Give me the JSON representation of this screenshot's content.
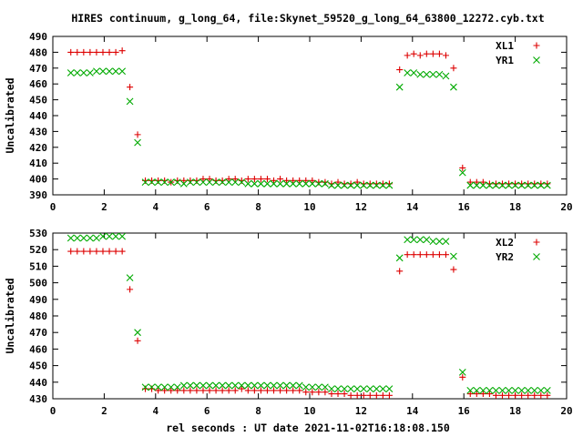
{
  "title": "HIRES continuum, g_long_64, file:Skynet_59520_g_long_64_63800_12272.cyb.txt",
  "xlabel": "rel seconds : UT date 2021-11-02T16:18:08.150",
  "chart_data": [
    {
      "type": "scatter",
      "ylabel": "Uncalibrated",
      "xlim": [
        0,
        20
      ],
      "ylim": [
        390,
        490
      ],
      "xticks": [
        0,
        2,
        4,
        6,
        8,
        10,
        12,
        14,
        16,
        18,
        20
      ],
      "yticks": [
        390,
        400,
        410,
        420,
        430,
        440,
        450,
        460,
        470,
        480,
        490
      ],
      "legend_position": "top-right",
      "series": [
        {
          "name": "XL1",
          "color": "#dd0000",
          "marker": "plus",
          "x": [
            0.7,
            0.95,
            1.2,
            1.45,
            1.7,
            1.95,
            2.2,
            2.45,
            2.7,
            3.0,
            3.3,
            3.6,
            3.85,
            4.1,
            4.35,
            4.6,
            4.85,
            5.1,
            5.35,
            5.6,
            5.85,
            6.1,
            6.35,
            6.6,
            6.85,
            7.1,
            7.35,
            7.6,
            7.85,
            8.1,
            8.35,
            8.6,
            8.85,
            9.1,
            9.35,
            9.6,
            9.85,
            10.1,
            10.35,
            10.6,
            10.85,
            11.1,
            11.35,
            11.6,
            11.85,
            12.1,
            12.35,
            12.6,
            12.85,
            13.1,
            13.5,
            13.8,
            14.05,
            14.3,
            14.55,
            14.8,
            15.05,
            15.3,
            15.6,
            15.95,
            16.25,
            16.5,
            16.75,
            17.0,
            17.25,
            17.5,
            17.75,
            18.0,
            18.25,
            18.5,
            18.75,
            19.0,
            19.25
          ],
          "y": [
            480,
            480,
            480,
            480,
            480,
            480,
            480,
            480,
            481,
            458,
            428,
            399,
            399,
            399,
            399,
            398,
            399,
            399,
            399,
            399,
            400,
            400,
            399,
            399,
            400,
            400,
            399,
            400,
            400,
            400,
            400,
            399,
            400,
            399,
            399,
            399,
            399,
            399,
            398,
            398,
            397,
            398,
            397,
            397,
            398,
            397,
            397,
            397,
            397,
            397,
            469,
            478,
            479,
            478,
            479,
            479,
            479,
            478,
            470,
            407,
            398,
            398,
            398,
            397,
            397,
            397,
            397,
            397,
            397,
            397,
            397,
            397,
            397
          ]
        },
        {
          "name": "YR1",
          "color": "#00aa00",
          "marker": "x",
          "x": [
            0.7,
            0.95,
            1.2,
            1.45,
            1.7,
            1.95,
            2.2,
            2.45,
            2.7,
            3.0,
            3.3,
            3.6,
            3.85,
            4.1,
            4.35,
            4.6,
            4.85,
            5.1,
            5.35,
            5.6,
            5.85,
            6.1,
            6.35,
            6.6,
            6.85,
            7.1,
            7.35,
            7.6,
            7.85,
            8.1,
            8.35,
            8.6,
            8.85,
            9.1,
            9.35,
            9.6,
            9.85,
            10.1,
            10.35,
            10.6,
            10.85,
            11.1,
            11.35,
            11.6,
            11.85,
            12.1,
            12.35,
            12.6,
            12.85,
            13.1,
            13.5,
            13.8,
            14.05,
            14.3,
            14.55,
            14.8,
            15.05,
            15.3,
            15.6,
            15.95,
            16.25,
            16.5,
            16.75,
            17.0,
            17.25,
            17.5,
            17.75,
            18.0,
            18.25,
            18.5,
            18.75,
            19.0,
            19.25
          ],
          "y": [
            467,
            467,
            467,
            467,
            468,
            468,
            468,
            468,
            468,
            449,
            423,
            398,
            398,
            398,
            398,
            398,
            398,
            397,
            398,
            398,
            398,
            398,
            398,
            398,
            398,
            398,
            398,
            397,
            397,
            397,
            397,
            397,
            397,
            397,
            397,
            397,
            397,
            397,
            397,
            397,
            396,
            396,
            396,
            396,
            396,
            396,
            396,
            396,
            396,
            396,
            458,
            467,
            467,
            466,
            466,
            466,
            466,
            465,
            458,
            404,
            396,
            396,
            396,
            396,
            396,
            396,
            396,
            396,
            396,
            396,
            396,
            396,
            396
          ]
        }
      ]
    },
    {
      "type": "scatter",
      "ylabel": "Uncalibrated",
      "xlim": [
        0,
        20
      ],
      "ylim": [
        430,
        530
      ],
      "xticks": [
        0,
        2,
        4,
        6,
        8,
        10,
        12,
        14,
        16,
        18,
        20
      ],
      "yticks": [
        430,
        440,
        450,
        460,
        470,
        480,
        490,
        500,
        510,
        520,
        530
      ],
      "legend_position": "top-right",
      "series": [
        {
          "name": "XL2",
          "color": "#dd0000",
          "marker": "plus",
          "x": [
            0.7,
            0.95,
            1.2,
            1.45,
            1.7,
            1.95,
            2.2,
            2.45,
            2.7,
            3.0,
            3.3,
            3.6,
            3.85,
            4.1,
            4.35,
            4.6,
            4.85,
            5.1,
            5.35,
            5.6,
            5.85,
            6.1,
            6.35,
            6.6,
            6.85,
            7.1,
            7.35,
            7.6,
            7.85,
            8.1,
            8.35,
            8.6,
            8.85,
            9.1,
            9.35,
            9.6,
            9.85,
            10.1,
            10.35,
            10.6,
            10.85,
            11.1,
            11.35,
            11.6,
            11.85,
            12.1,
            12.35,
            12.6,
            12.85,
            13.1,
            13.5,
            13.8,
            14.05,
            14.3,
            14.55,
            14.8,
            15.05,
            15.3,
            15.6,
            15.95,
            16.25,
            16.5,
            16.75,
            17.0,
            17.25,
            17.5,
            17.75,
            18.0,
            18.25,
            18.5,
            18.75,
            19.0,
            19.25
          ],
          "y": [
            519,
            519,
            519,
            519,
            519,
            519,
            519,
            519,
            519,
            496,
            465,
            436,
            436,
            435,
            435,
            435,
            435,
            435,
            435,
            435,
            435,
            435,
            435,
            435,
            435,
            435,
            436,
            435,
            435,
            435,
            435,
            435,
            435,
            435,
            435,
            435,
            434,
            434,
            434,
            434,
            433,
            433,
            433,
            432,
            432,
            432,
            432,
            432,
            432,
            432,
            507,
            517,
            517,
            517,
            517,
            517,
            517,
            517,
            508,
            443,
            433,
            433,
            433,
            433,
            432,
            432,
            432,
            432,
            432,
            432,
            432,
            432,
            432
          ]
        },
        {
          "name": "YR2",
          "color": "#00aa00",
          "marker": "x",
          "x": [
            0.7,
            0.95,
            1.2,
            1.45,
            1.7,
            1.95,
            2.2,
            2.45,
            2.7,
            3.0,
            3.3,
            3.6,
            3.85,
            4.1,
            4.35,
            4.6,
            4.85,
            5.1,
            5.35,
            5.6,
            5.85,
            6.1,
            6.35,
            6.6,
            6.85,
            7.1,
            7.35,
            7.6,
            7.85,
            8.1,
            8.35,
            8.6,
            8.85,
            9.1,
            9.35,
            9.6,
            9.85,
            10.1,
            10.35,
            10.6,
            10.85,
            11.1,
            11.35,
            11.6,
            11.85,
            12.1,
            12.35,
            12.6,
            12.85,
            13.1,
            13.5,
            13.8,
            14.05,
            14.3,
            14.55,
            14.8,
            15.05,
            15.3,
            15.6,
            15.95,
            16.25,
            16.5,
            16.75,
            17.0,
            17.25,
            17.5,
            17.75,
            18.0,
            18.25,
            18.5,
            18.75,
            19.0,
            19.25
          ],
          "y": [
            527,
            527,
            527,
            527,
            527,
            528,
            528,
            528,
            528,
            503,
            470,
            437,
            437,
            437,
            437,
            437,
            437,
            438,
            438,
            438,
            438,
            438,
            438,
            438,
            438,
            438,
            438,
            438,
            438,
            438,
            438,
            438,
            438,
            438,
            438,
            438,
            437,
            437,
            437,
            437,
            436,
            436,
            436,
            436,
            436,
            436,
            436,
            436,
            436,
            436,
            515,
            526,
            526,
            526,
            526,
            525,
            525,
            525,
            516,
            446,
            435,
            435,
            435,
            435,
            435,
            435,
            435,
            435,
            435,
            435,
            435,
            435,
            435
          ]
        }
      ]
    }
  ]
}
